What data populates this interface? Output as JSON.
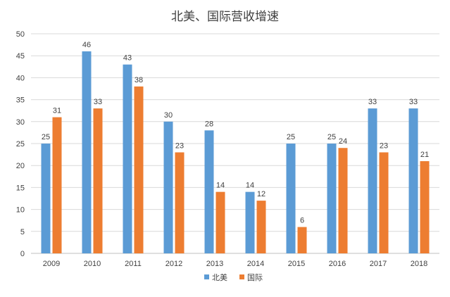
{
  "chart_data": {
    "type": "bar",
    "title": "北美、国际营收增速",
    "categories": [
      "2009",
      "2010",
      "2011",
      "2012",
      "2013",
      "2014",
      "2015",
      "2016",
      "2017",
      "2018"
    ],
    "series": [
      {
        "name": "北美",
        "color": "#5B9BD5",
        "values": [
          25,
          46,
          43,
          30,
          28,
          14,
          25,
          25,
          33,
          33
        ]
      },
      {
        "name": "国际",
        "color": "#ED7D31",
        "values": [
          31,
          33,
          38,
          23,
          14,
          12,
          6,
          24,
          23,
          21
        ]
      }
    ],
    "ylim": [
      0,
      50
    ],
    "yticks": [
      0,
      5,
      10,
      15,
      20,
      25,
      30,
      35,
      40,
      45,
      50
    ],
    "grid": true,
    "legend_position": "bottom",
    "data_labels": true
  }
}
